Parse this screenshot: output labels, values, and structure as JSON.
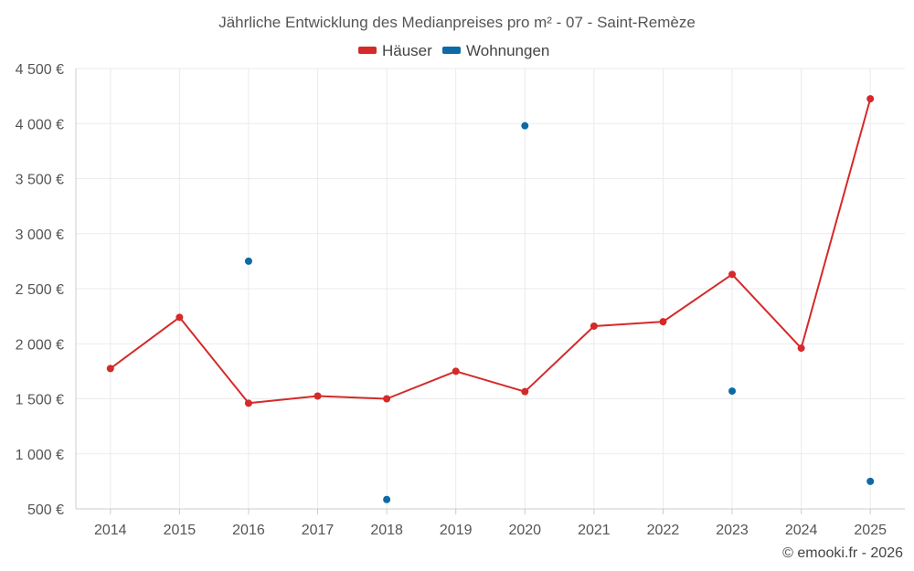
{
  "chart_data": {
    "type": "line",
    "title": "Jährliche Entwicklung des Medianpreises pro m² - 07 - Saint-Remèze",
    "categories": [
      "2014",
      "2015",
      "2016",
      "2017",
      "2018",
      "2019",
      "2020",
      "2021",
      "2022",
      "2023",
      "2024",
      "2025"
    ],
    "ylim": [
      500,
      4500
    ],
    "yticks": [
      500,
      1000,
      1500,
      2000,
      2500,
      3000,
      3500,
      4000,
      4500
    ],
    "ytick_labels": [
      "500 €",
      "1 000 €",
      "1 500 €",
      "2 000 €",
      "2 500 €",
      "3 000 €",
      "3 500 €",
      "4 000 €",
      "4 500 €"
    ],
    "legend_position": "top-center",
    "series": [
      {
        "name": "Häuser",
        "color": "#d42a2a",
        "style": "line-markers",
        "values": [
          1775,
          2240,
          1460,
          1525,
          1500,
          1750,
          1565,
          2160,
          2200,
          2630,
          1960,
          4225
        ]
      },
      {
        "name": "Wohnungen",
        "color": "#0c6aa6",
        "style": "markers",
        "values": [
          null,
          null,
          2750,
          null,
          585,
          null,
          3980,
          null,
          null,
          1570,
          null,
          750
        ]
      }
    ],
    "credit": "© emooki.fr - 2026"
  }
}
